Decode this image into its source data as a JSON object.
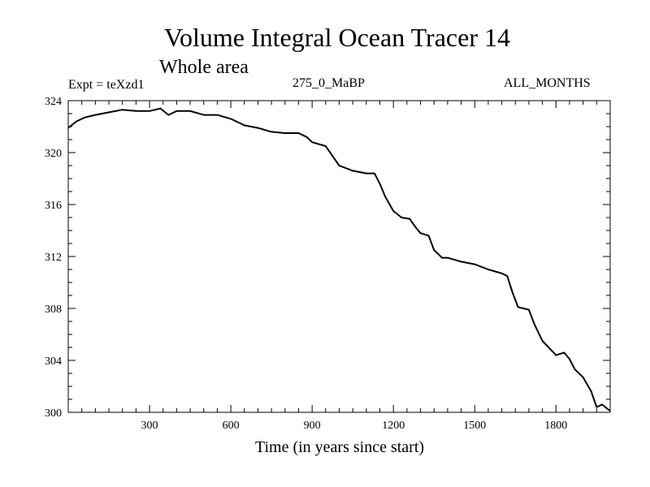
{
  "header": {
    "title": "Volume Integral Ocean Tracer 14",
    "subtitle": "Whole area",
    "experiment": "Expt = teXzd1",
    "period": "275_0_MaBP",
    "months": "ALL_MONTHS"
  },
  "chart_data": {
    "type": "line",
    "title": "Volume Integral Ocean Tracer 14",
    "xlabel": "Time (in years since start)",
    "ylabel": "",
    "xlim": [
      0,
      2000
    ],
    "ylim": [
      300,
      324
    ],
    "xticks": [
      300,
      600,
      900,
      1200,
      1500,
      1800
    ],
    "yticks": [
      300,
      304,
      308,
      312,
      316,
      320,
      324
    ],
    "series": [
      {
        "name": "Tracer 14",
        "color": "#000000",
        "x": [
          0,
          30,
          60,
          100,
          150,
          200,
          250,
          300,
          340,
          370,
          400,
          450,
          500,
          550,
          600,
          650,
          700,
          750,
          800,
          850,
          880,
          900,
          950,
          980,
          1000,
          1050,
          1100,
          1130,
          1150,
          1170,
          1200,
          1230,
          1260,
          1280,
          1300,
          1330,
          1350,
          1380,
          1400,
          1450,
          1500,
          1550,
          1600,
          1620,
          1640,
          1660,
          1700,
          1720,
          1750,
          1800,
          1830,
          1850,
          1870,
          1900,
          1930,
          1950,
          1970,
          2000
        ],
        "values": [
          321.9,
          322.4,
          322.7,
          322.9,
          323.1,
          323.3,
          323.2,
          323.2,
          323.4,
          322.9,
          323.2,
          323.2,
          322.9,
          322.9,
          322.6,
          322.1,
          321.9,
          321.6,
          321.5,
          321.5,
          321.2,
          320.8,
          320.5,
          319.6,
          319.0,
          318.6,
          318.4,
          318.4,
          317.6,
          316.6,
          315.5,
          315.0,
          314.9,
          314.3,
          313.8,
          313.6,
          312.5,
          311.9,
          311.9,
          311.6,
          311.4,
          311.0,
          310.7,
          310.5,
          309.2,
          308.1,
          307.9,
          306.8,
          305.5,
          304.4,
          304.6,
          304.1,
          303.3,
          302.7,
          301.6,
          300.4,
          300.6,
          300.1
        ]
      }
    ]
  }
}
